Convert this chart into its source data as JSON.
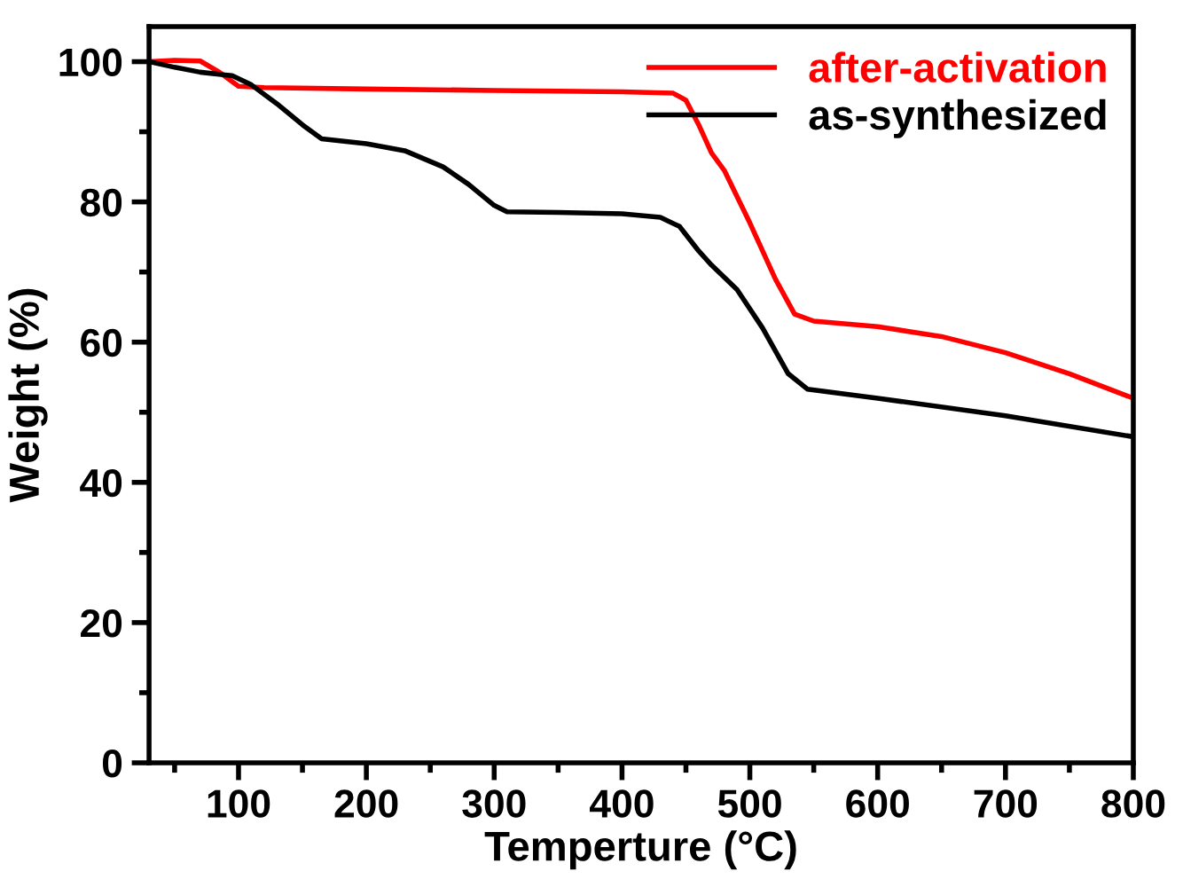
{
  "chart_data": {
    "type": "line",
    "xlabel": "Temperture (°C)",
    "ylabel": "Weight (%)",
    "xlim": [
      30,
      800
    ],
    "ylim": [
      0,
      105
    ],
    "xticks": [
      100,
      200,
      300,
      400,
      500,
      600,
      700,
      800
    ],
    "yticks": [
      0,
      20,
      40,
      60,
      80,
      100
    ],
    "grid": false,
    "legend": "top right",
    "marker": "none",
    "line_style": "solid",
    "series": [
      {
        "name": "after-activation",
        "color": "#ff0000",
        "x": [
          30,
          50,
          70,
          85,
          100,
          120,
          200,
          300,
          400,
          440,
          450,
          460,
          470,
          480,
          500,
          520,
          535,
          550,
          600,
          650,
          700,
          750,
          800
        ],
        "values": [
          100,
          100.2,
          100.1,
          98.5,
          96.5,
          96.3,
          96.1,
          95.9,
          95.7,
          95.5,
          94.5,
          91,
          87,
          84.5,
          77,
          69,
          64,
          63,
          62.2,
          60.8,
          58.5,
          55.5,
          52
        ]
      },
      {
        "name": "as-synthesized",
        "color": "#000000",
        "x": [
          30,
          50,
          70,
          95,
          110,
          130,
          150,
          165,
          200,
          230,
          260,
          280,
          300,
          310,
          350,
          400,
          430,
          445,
          460,
          470,
          490,
          510,
          530,
          545,
          600,
          700,
          800
        ],
        "values": [
          100,
          99.2,
          98.5,
          98,
          96.7,
          94,
          91,
          89,
          88.3,
          87.3,
          85,
          82.5,
          79.5,
          78.6,
          78.5,
          78.3,
          77.8,
          76.5,
          73,
          71,
          67.5,
          62,
          55.5,
          53.3,
          52,
          49.5,
          46.5
        ]
      }
    ]
  }
}
